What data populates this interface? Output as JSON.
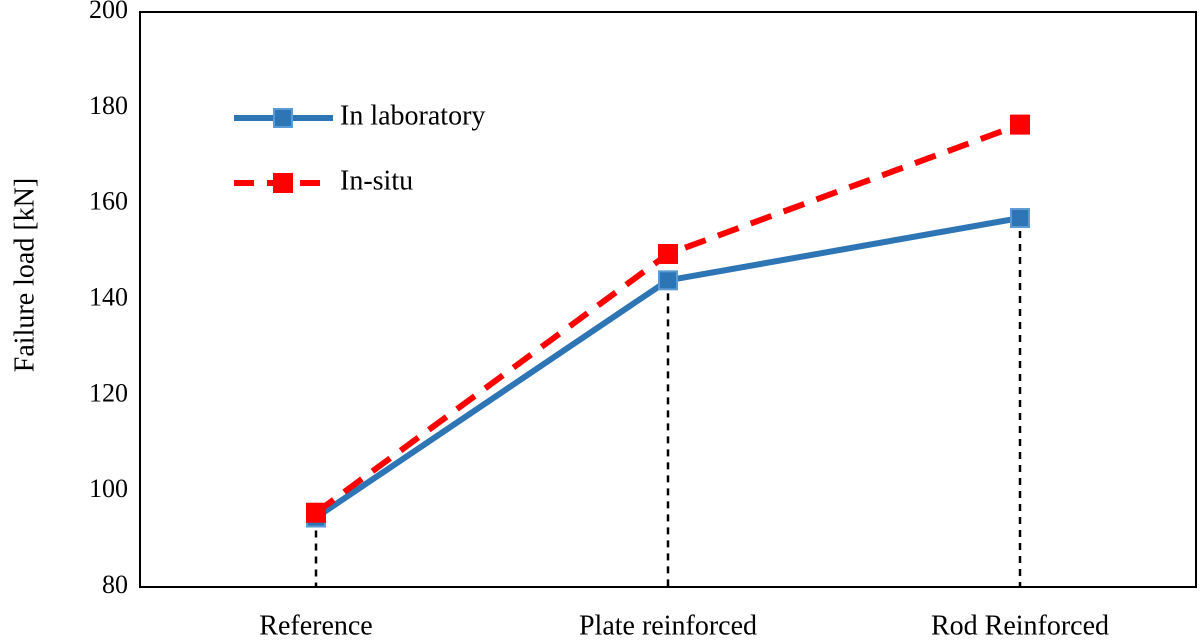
{
  "chart_data": {
    "type": "line",
    "categories": [
      "Reference",
      "Plate reinforced",
      "Rod Reinforced"
    ],
    "ylabel": "Failure load [kN]",
    "xlabel": "",
    "ylim": [
      80,
      200
    ],
    "yticks": [
      80,
      100,
      120,
      140,
      160,
      180,
      200
    ],
    "grid": false,
    "legend_position": "top-left",
    "drop_lines": true,
    "series": [
      {
        "name": "In laboratory",
        "values": [
          94.5,
          144,
          157
        ],
        "color": "#2E75B6",
        "line_style": "solid",
        "marker": "square"
      },
      {
        "name": "In-situ",
        "values": [
          95.5,
          149.5,
          176.5
        ],
        "color": "#FF0000",
        "line_style": "dashed",
        "marker": "square"
      }
    ]
  }
}
